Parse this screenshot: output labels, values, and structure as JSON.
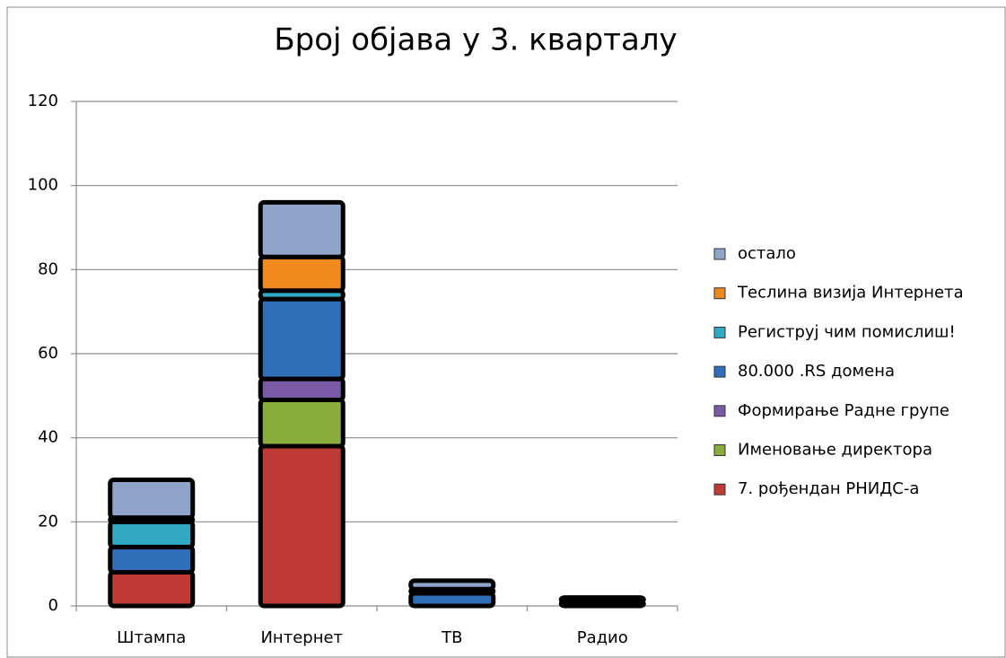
{
  "chart_data": {
    "type": "stacked_bar",
    "title": "Број објава у 3. кварталу",
    "categories": [
      "Штампа",
      "Интернет",
      "ТВ",
      "Радио"
    ],
    "series": [
      {
        "name": "7. рођендан РНИДС-а",
        "color": "#be3a34",
        "values": [
          8,
          38,
          0,
          0
        ]
      },
      {
        "name": "Именовање директора",
        "color": "#8aac3c",
        "values": [
          0,
          11,
          0,
          0
        ]
      },
      {
        "name": "Формирање Радне групе",
        "color": "#7a5aa6",
        "values": [
          0,
          5,
          0,
          0
        ]
      },
      {
        "name": "80.000 .RS домена",
        "color": "#2f6eb8",
        "values": [
          6,
          19,
          3,
          0
        ]
      },
      {
        "name": "Региструј чим помислиш!",
        "color": "#31a8c4",
        "values": [
          6,
          2,
          0,
          0
        ]
      },
      {
        "name": "Теслина визија Интернета",
        "color": "#f08a1e",
        "values": [
          1,
          8,
          1,
          1
        ]
      },
      {
        "name": "остало",
        "color": "#8ea4c8",
        "values": [
          9,
          13,
          2,
          1
        ]
      }
    ],
    "ylim": [
      0,
      120
    ],
    "yticks": [
      0,
      20,
      40,
      60,
      80,
      100,
      120
    ],
    "grid": true,
    "legend": "right"
  }
}
